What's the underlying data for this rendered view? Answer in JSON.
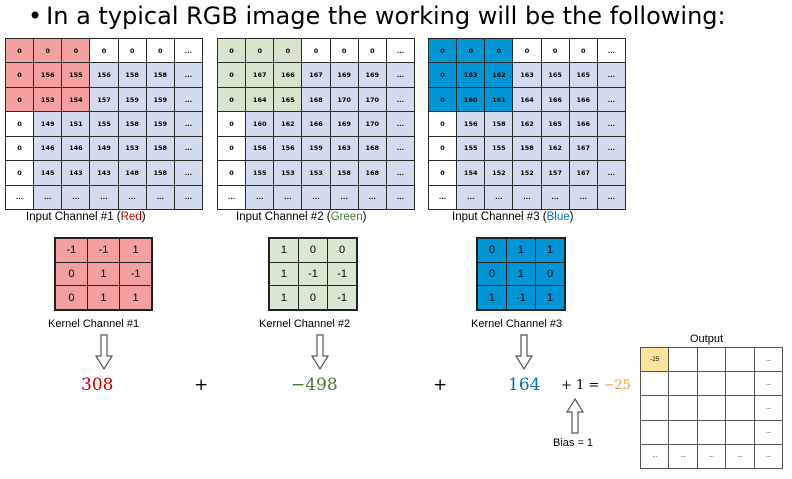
{
  "title": "In a typical RGB image the working will be the following:",
  "input_channels": [
    {
      "caption_prefix": "Input Channel #1 (",
      "caption_color_word": "Red",
      "caption_suffix": ")",
      "rows": [
        [
          "0",
          "0",
          "0",
          "0",
          "0",
          "0",
          "..."
        ],
        [
          "0",
          "156",
          "155",
          "156",
          "158",
          "158",
          "..."
        ],
        [
          "0",
          "153",
          "154",
          "157",
          "159",
          "159",
          "..."
        ],
        [
          "0",
          "149",
          "151",
          "155",
          "158",
          "159",
          "..."
        ],
        [
          "0",
          "146",
          "146",
          "149",
          "153",
          "158",
          "..."
        ],
        [
          "0",
          "145",
          "143",
          "143",
          "148",
          "158",
          "..."
        ],
        [
          "...",
          "...",
          "...",
          "...",
          "...",
          "...",
          "..."
        ]
      ]
    },
    {
      "caption_prefix": "Input Channel #2 (",
      "caption_color_word": "Green",
      "caption_suffix": ")",
      "rows": [
        [
          "0",
          "0",
          "0",
          "0",
          "0",
          "0",
          "..."
        ],
        [
          "0",
          "167",
          "166",
          "167",
          "169",
          "169",
          "..."
        ],
        [
          "0",
          "164",
          "165",
          "168",
          "170",
          "170",
          "..."
        ],
        [
          "0",
          "160",
          "162",
          "166",
          "169",
          "170",
          "..."
        ],
        [
          "0",
          "156",
          "156",
          "159",
          "163",
          "168",
          "..."
        ],
        [
          "0",
          "155",
          "153",
          "153",
          "158",
          "168",
          "..."
        ],
        [
          "...",
          "...",
          "...",
          "...",
          "...",
          "...",
          "..."
        ]
      ]
    },
    {
      "caption_prefix": "Input Channel #3 (",
      "caption_color_word": "Blue",
      "caption_suffix": ")",
      "rows": [
        [
          "0",
          "0",
          "0",
          "0",
          "0",
          "0",
          "..."
        ],
        [
          "0",
          "163",
          "162",
          "163",
          "165",
          "165",
          "..."
        ],
        [
          "0",
          "160",
          "161",
          "164",
          "166",
          "166",
          "..."
        ],
        [
          "0",
          "156",
          "158",
          "162",
          "165",
          "166",
          "..."
        ],
        [
          "0",
          "155",
          "155",
          "158",
          "162",
          "167",
          "..."
        ],
        [
          "0",
          "154",
          "152",
          "152",
          "157",
          "167",
          "..."
        ],
        [
          "...",
          "...",
          "...",
          "...",
          "...",
          "...",
          "..."
        ]
      ]
    }
  ],
  "kernels": [
    {
      "caption": "Kernel Channel #1",
      "rows": [
        [
          "-1",
          "-1",
          "1"
        ],
        [
          "0",
          "1",
          "-1"
        ],
        [
          "0",
          "1",
          "1"
        ]
      ]
    },
    {
      "caption": "Kernel Channel #2",
      "rows": [
        [
          "1",
          "0",
          "0"
        ],
        [
          "1",
          "-1",
          "-1"
        ],
        [
          "1",
          "0",
          "-1"
        ]
      ]
    },
    {
      "caption": "Kernel Channel #3",
      "rows": [
        [
          "0",
          "1",
          "1"
        ],
        [
          "0",
          "1",
          "0"
        ],
        [
          "1",
          "-1",
          "1"
        ]
      ]
    }
  ],
  "results": [
    "308",
    "−498",
    "164"
  ],
  "plus_sign": "+",
  "bias_term": "+ 1 =",
  "final_value": "−25",
  "bias_label": "Bias = 1",
  "output": {
    "label": "Output",
    "rows": [
      [
        "-25",
        "",
        "",
        "",
        "..."
      ],
      [
        "",
        "",
        "",
        "",
        "..."
      ],
      [
        "",
        "",
        "",
        "",
        "..."
      ],
      [
        "",
        "",
        "",
        "",
        "..."
      ],
      [
        "...",
        "...",
        "...",
        "...",
        "..."
      ]
    ]
  },
  "colors": {
    "red": "#c00000",
    "green": "#4a7a32",
    "blue": "#0070c0",
    "orange": "#e69a28",
    "red_fill": "#f4a0a0",
    "green_fill": "#d6e4cd",
    "blue_fill": "#0096d6",
    "highlight_fill": "#fde39a",
    "pad_fill": "#d3dcee"
  }
}
